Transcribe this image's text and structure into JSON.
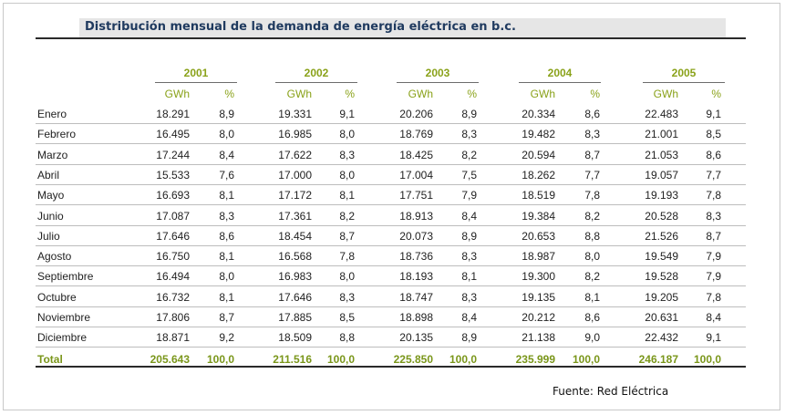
{
  "title": "Distribución mensual de la demanda de energía eléctrica en b.c.",
  "years": [
    "2001",
    "2002",
    "2003",
    "2004",
    "2005"
  ],
  "unit_labels": {
    "gwh": "GWh",
    "pct": "%"
  },
  "rows": [
    {
      "month": "Enero",
      "vals": [
        "18.291",
        "8,9",
        "19.331",
        "9,1",
        "20.206",
        "8,9",
        "20.334",
        "8,6",
        "22.483",
        "9,1"
      ]
    },
    {
      "month": "Febrero",
      "vals": [
        "16.495",
        "8,0",
        "16.985",
        "8,0",
        "18.769",
        "8,3",
        "19.482",
        "8,3",
        "21.001",
        "8,5"
      ]
    },
    {
      "month": "Marzo",
      "vals": [
        "17.244",
        "8,4",
        "17.622",
        "8,3",
        "18.425",
        "8,2",
        "20.594",
        "8,7",
        "21.053",
        "8,6"
      ]
    },
    {
      "month": "Abril",
      "vals": [
        "15.533",
        "7,6",
        "17.000",
        "8,0",
        "17.004",
        "7,5",
        "18.262",
        "7,7",
        "19.057",
        "7,7"
      ]
    },
    {
      "month": "Mayo",
      "vals": [
        "16.693",
        "8,1",
        "17.172",
        "8,1",
        "17.751",
        "7,9",
        "18.519",
        "7,8",
        "19.193",
        "7,8"
      ]
    },
    {
      "month": "Junio",
      "vals": [
        "17.087",
        "8,3",
        "17.361",
        "8,2",
        "18.913",
        "8,4",
        "19.384",
        "8,2",
        "20.528",
        "8,3"
      ]
    },
    {
      "month": "Julio",
      "vals": [
        "17.646",
        "8,6",
        "18.454",
        "8,7",
        "20.073",
        "8,9",
        "20.653",
        "8,8",
        "21.526",
        "8,7"
      ]
    },
    {
      "month": "Agosto",
      "vals": [
        "16.750",
        "8,1",
        "16.568",
        "7,8",
        "18.736",
        "8,3",
        "18.987",
        "8,0",
        "19.549",
        "7,9"
      ]
    },
    {
      "month": "Septiembre",
      "vals": [
        "16.494",
        "8,0",
        "16.983",
        "8,0",
        "18.193",
        "8,1",
        "19.300",
        "8,2",
        "19.528",
        "7,9"
      ]
    },
    {
      "month": "Octubre",
      "vals": [
        "16.732",
        "8,1",
        "17.646",
        "8,3",
        "18.747",
        "8,3",
        "19.135",
        "8,1",
        "19.205",
        "7,8"
      ]
    },
    {
      "month": "Noviembre",
      "vals": [
        "17.806",
        "8,7",
        "17.885",
        "8,5",
        "18.898",
        "8,4",
        "20.212",
        "8,6",
        "20.631",
        "8,4"
      ]
    },
    {
      "month": "Diciembre",
      "vals": [
        "18.871",
        "9,2",
        "18.509",
        "8,8",
        "20.135",
        "8,9",
        "21.138",
        "9,0",
        "22.432",
        "9,1"
      ]
    }
  ],
  "total": {
    "month": "Total",
    "vals": [
      "205.643",
      "100,0",
      "211.516",
      "100,0",
      "225.850",
      "100,0",
      "235.999",
      "100,0",
      "246.187",
      "100,0"
    ]
  },
  "source": "Fuente: Red Eléctrica"
}
